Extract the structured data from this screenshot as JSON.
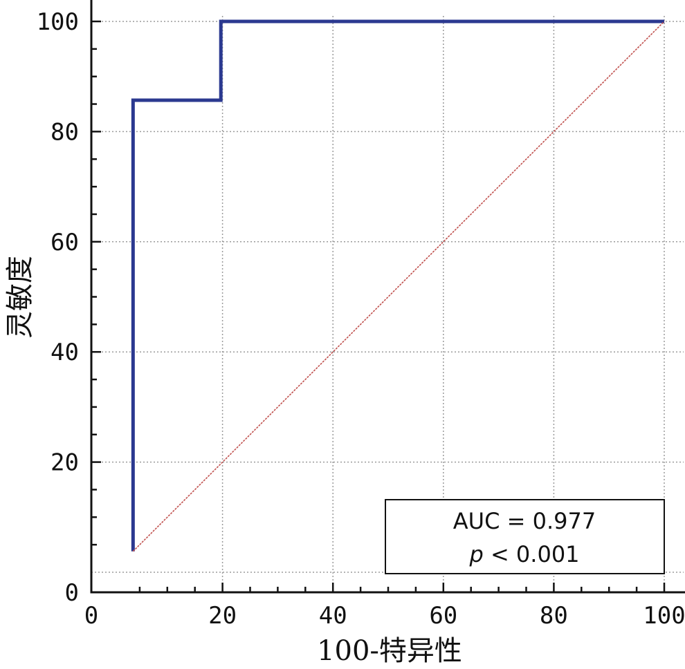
{
  "chart_data": {
    "type": "line",
    "xlabel": "100-特异性",
    "ylabel": "灵敏度",
    "xlim": [
      0,
      100
    ],
    "ylim": [
      0,
      100
    ],
    "xticks": [
      0,
      20,
      40,
      60,
      80,
      100
    ],
    "yticks": [
      0,
      20,
      40,
      60,
      80,
      100
    ],
    "grid": true,
    "series": [
      {
        "color": "#2b3990",
        "x": [
          3.8,
          3.8,
          19.7,
          19.7,
          100
        ],
        "y": [
          3.8,
          85.7,
          85.7,
          100,
          100
        ]
      },
      {
        "color": "#c0504d",
        "x": [
          3.8,
          100
        ],
        "y": [
          3.8,
          100
        ]
      }
    ],
    "annotation": {
      "line1": "AUC = 0.977",
      "line2_italic": "p",
      "line2_rest": " < 0.001",
      "placement": "bottom-right"
    }
  }
}
